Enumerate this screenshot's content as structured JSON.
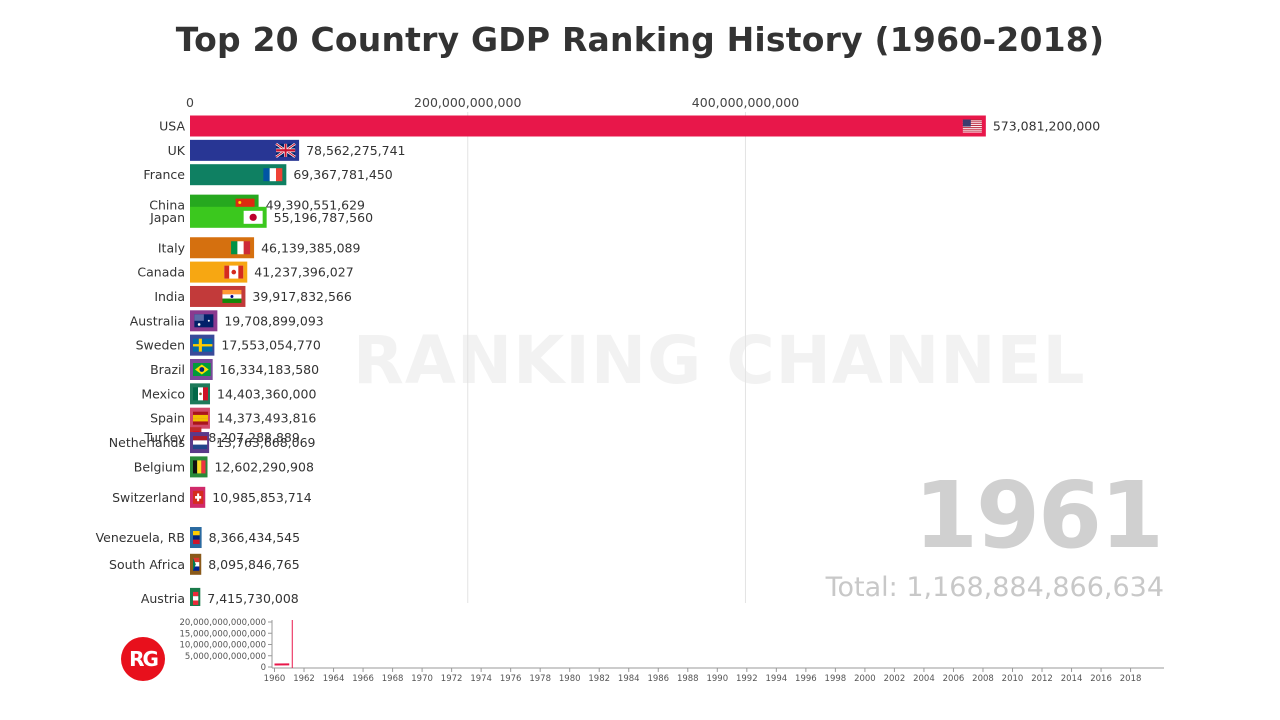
{
  "title": "Top 20 Country GDP Ranking History (1960-2018)",
  "watermark": "RANKING CHANNEL",
  "year": "1961",
  "total": "Total: 1,168,884,866,634",
  "logo_text": "RG",
  "chart_data": [
    {
      "type": "bar",
      "orientation": "horizontal",
      "title": "Top 20 Country GDP Ranking History (1960-2018)",
      "x_ticks": [
        0,
        200000000000,
        400000000000
      ],
      "x_tick_labels": [
        "0",
        "200,000,000,000",
        "400,000,000,000"
      ],
      "xlim": [
        0,
        580000000000
      ],
      "grid": true,
      "bars": [
        {
          "label": "USA",
          "value": 573081200000,
          "value_label": "573,081,200,000",
          "rank": 1,
          "color": "#e8174a",
          "flag": "us"
        },
        {
          "label": "UK",
          "value": 78562275741,
          "value_label": "78,562,275,741",
          "rank": 2,
          "color": "#283694",
          "flag": "uk"
        },
        {
          "label": "France",
          "value": 69367781450,
          "value_label": "69,367,781,450",
          "rank": 3,
          "color": "#0f8062",
          "flag": "fr"
        },
        {
          "label": "China",
          "value": 49390551629,
          "value_label": "49,390,551,629",
          "rank": 4.25,
          "color": "#26a81f",
          "flag": "cn"
        },
        {
          "label": "Japan",
          "value": 55196787560,
          "value_label": "55,196,787,560",
          "rank": 4.75,
          "color": "#3bc81e",
          "flag": "jp"
        },
        {
          "label": "Italy",
          "value": 46139385089,
          "value_label": "46,139,385,089",
          "rank": 6,
          "color": "#d5700f",
          "flag": "it"
        },
        {
          "label": "Canada",
          "value": 41237396027,
          "value_label": "41,237,396,027",
          "rank": 7,
          "color": "#f7a712",
          "flag": "ca"
        },
        {
          "label": "India",
          "value": 39917832566,
          "value_label": "39,917,832,566",
          "rank": 8,
          "color": "#c23a3a",
          "flag": "in"
        },
        {
          "label": "Australia",
          "value": 19708899093,
          "value_label": "19,708,899,093",
          "rank": 9,
          "color": "#8a3a8f",
          "flag": "au"
        },
        {
          "label": "Sweden",
          "value": 17553054770,
          "value_label": "17,553,054,770",
          "rank": 10,
          "color": "#3a4a9a",
          "flag": "se"
        },
        {
          "label": "Brazil",
          "value": 16334183580,
          "value_label": "16,334,183,580",
          "rank": 11,
          "color": "#7a4a9a",
          "flag": "br"
        },
        {
          "label": "Mexico",
          "value": 14403360000,
          "value_label": "14,403,360,000",
          "rank": 12,
          "color": "#1d7a5a",
          "flag": "mx"
        },
        {
          "label": "Spain",
          "value": 14373493816,
          "value_label": "14,373,493,816",
          "rank": 13,
          "color": "#d04a6a",
          "flag": "es"
        },
        {
          "label": "Turkey",
          "value": 8207288889,
          "value_label": "8,207,288,889",
          "rank": 13.8,
          "color": "#c02a2a",
          "flag": "tr"
        },
        {
          "label": "Netherlands",
          "value": 13763668069,
          "value_label": "13,763,668,069",
          "rank": 14,
          "color": "#5a3a8a",
          "flag": "nl"
        },
        {
          "label": "Belgium",
          "value": 12602290908,
          "value_label": "12,602,290,908",
          "rank": 15,
          "color": "#2a8a3a",
          "flag": "be"
        },
        {
          "label": "Switzerland",
          "value": 10985853714,
          "value_label": "10,985,853,714",
          "rank": 16.25,
          "color": "#d02a6a",
          "flag": "ch"
        },
        {
          "label": "Venezuela, RB",
          "value": 8366434545,
          "value_label": "8,366,434,545",
          "rank": 17.9,
          "color": "#2a6aa0",
          "flag": "ve"
        },
        {
          "label": "South Africa",
          "value": 8095846765,
          "value_label": "8,095,846,765",
          "rank": 19,
          "color": "#8a5a1a",
          "flag": "za"
        },
        {
          "label": "Austria",
          "value": 7415730008,
          "value_label": "7,415,730,008",
          "rank": 20.4,
          "color": "#1a7a4a",
          "flag": "at"
        }
      ]
    },
    {
      "type": "line",
      "title": "",
      "x": [
        1960,
        1961
      ],
      "y": [
        1100000000000,
        1168884866634
      ],
      "ylim": [
        0,
        20000000000000
      ],
      "y_ticks": [
        0,
        5000000000000,
        10000000000000,
        15000000000000,
        20000000000000
      ],
      "y_tick_labels": [
        "0",
        "5,000,000,000,000",
        "10,000,000,000,000",
        "15,000,000,000,000",
        "20,000,000,000,000"
      ],
      "xlim": [
        1960,
        2019
      ],
      "x_ticks": [
        1960,
        1962,
        1964,
        1966,
        1968,
        1970,
        1972,
        1974,
        1976,
        1978,
        1980,
        1982,
        1984,
        1986,
        1988,
        1990,
        1992,
        1994,
        1996,
        1998,
        2000,
        2002,
        2004,
        2006,
        2008,
        2010,
        2012,
        2014,
        2016,
        2018
      ],
      "color": "#e8174a"
    }
  ]
}
